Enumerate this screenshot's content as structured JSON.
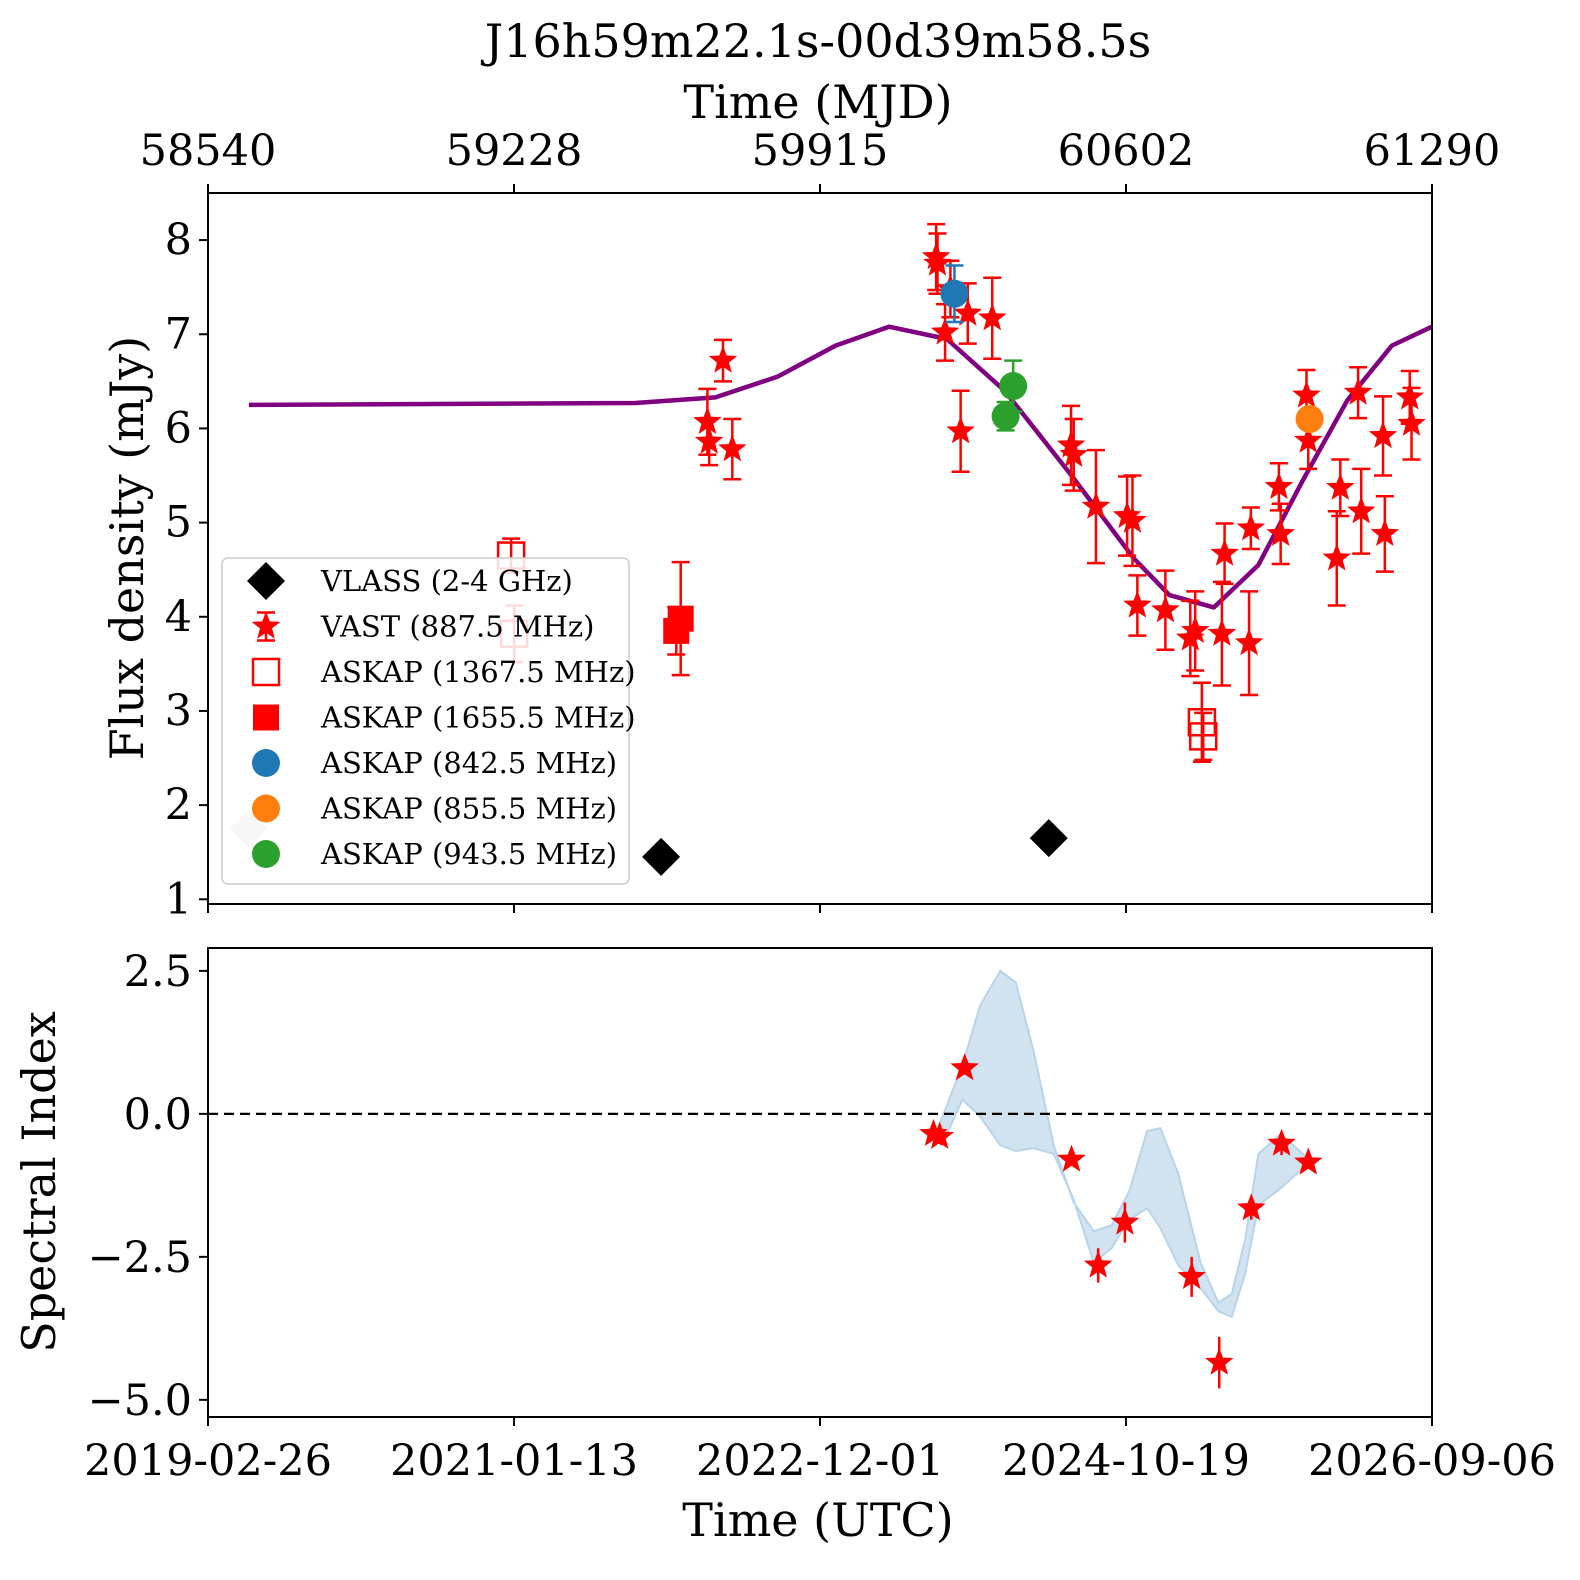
{
  "chart_data": [
    {
      "type": "scatter",
      "title": "J16h59m22.1s-00d39m58.5s",
      "xlabel_top": "Time (MJD)",
      "x_ticks_top": [
        "58540",
        "59228",
        "59915",
        "60602",
        "61290"
      ],
      "ylabel": "Flux density (mJy)",
      "ylim": [
        0.95,
        8.5
      ],
      "y_ticks": [
        "1",
        "2",
        "3",
        "4",
        "5",
        "6",
        "7",
        "8"
      ],
      "xlim_mjd": [
        58540,
        61290
      ],
      "grid": false,
      "legend_position": "lower-left",
      "series": [
        {
          "name": "VLASS (2-4 GHz)",
          "marker": "diamond",
          "color": "#000000",
          "filled": true,
          "points": [
            [
              59558,
              1.45,
              0.09
            ],
            [
              60429,
              1.65,
              0.09
            ]
          ]
        },
        {
          "name": "VAST (887.5 MHz)",
          "marker": "star",
          "color": "#ff0000",
          "filled": true,
          "points": [
            [
              59662,
              6.07,
              0.35
            ],
            [
              59666,
              5.86,
              0.25
            ],
            [
              59697,
              6.72,
              0.22
            ],
            [
              59718,
              5.78,
              0.32
            ],
            [
              60176,
              7.82,
              0.35
            ],
            [
              60179,
              7.75,
              0.32
            ],
            [
              60196,
              7.02,
              0.3
            ],
            [
              60208,
              7.48,
              0.3
            ],
            [
              60231,
              5.97,
              0.43
            ],
            [
              60247,
              7.22,
              0.32
            ],
            [
              60302,
              7.17,
              0.43
            ],
            [
              60479,
              5.82,
              0.42
            ],
            [
              60485,
              5.72,
              0.38
            ],
            [
              60535,
              5.17,
              0.6
            ],
            [
              60605,
              5.07,
              0.42
            ],
            [
              60617,
              5.02,
              0.48
            ],
            [
              60628,
              4.12,
              0.32
            ],
            [
              60691,
              4.07,
              0.42
            ],
            [
              60747,
              3.77,
              0.4
            ],
            [
              60758,
              3.85,
              0.42
            ],
            [
              60818,
              3.82,
              0.55
            ],
            [
              60824,
              4.67,
              0.32
            ],
            [
              60879,
              3.72,
              0.55
            ],
            [
              60883,
              4.94,
              0.22
            ],
            [
              60946,
              5.38,
              0.25
            ],
            [
              60950,
              4.88,
              0.32
            ],
            [
              61008,
              6.35,
              0.27
            ],
            [
              61012,
              5.87,
              0.3
            ],
            [
              61076,
              4.62,
              0.5
            ],
            [
              61084,
              5.37,
              0.3
            ],
            [
              61124,
              6.38,
              0.27
            ],
            [
              61131,
              5.12,
              0.45
            ],
            [
              61180,
              5.92,
              0.42
            ],
            [
              61184,
              4.88,
              0.4
            ],
            [
              61240,
              6.33,
              0.28
            ],
            [
              61244,
              6.05,
              0.38
            ]
          ]
        },
        {
          "name": "ASKAP (1367.5 MHz)",
          "marker": "square",
          "color": "#ff0000",
          "filled": false,
          "points": [
            [
              59221,
              4.65,
              0.18
            ],
            [
              59228,
              3.82,
              0.3
            ],
            [
              60773,
              2.88,
              0.42
            ],
            [
              60776,
              2.73,
              0.25
            ]
          ]
        },
        {
          "name": "ASKAP (1655.5 MHz)",
          "marker": "square",
          "color": "#ff0000",
          "filled": true,
          "points": [
            [
              59592,
              3.85,
              0.25
            ],
            [
              59602,
              3.98,
              0.6
            ]
          ]
        },
        {
          "name": "ASKAP (842.5 MHz)",
          "marker": "circle",
          "color": "#1f77b4",
          "filled": true,
          "points": [
            [
              60217,
              7.43,
              0.3
            ]
          ]
        },
        {
          "name": "ASKAP (855.5 MHz)",
          "marker": "circle",
          "color": "#ff7f0e",
          "filled": true,
          "points": [
            [
              61015,
              6.1,
              0.1
            ]
          ]
        },
        {
          "name": "ASKAP (943.5 MHz)",
          "marker": "circle",
          "color": "#2ca02c",
          "filled": true,
          "points": [
            [
              60332,
              6.13,
              0.15
            ],
            [
              60349,
              6.45,
              0.27
            ]
          ]
        },
        {
          "name": "",
          "marker": "diamond",
          "color": "#c8c8c8",
          "filled": true,
          "points": [
            [
              58632,
              1.75,
              0.05
            ]
          ]
        }
      ],
      "model_curve": {
        "color": "#800080",
        "baseline": 6.25,
        "start_mjd": 58632,
        "period_days": 1650,
        "peak_mjd": 60070,
        "points": [
          [
            58632,
            6.25
          ],
          [
            59500,
            6.27
          ],
          [
            59680,
            6.33
          ],
          [
            59820,
            6.55
          ],
          [
            59950,
            6.88
          ],
          [
            60070,
            7.08
          ],
          [
            60200,
            6.95
          ],
          [
            60330,
            6.4
          ],
          [
            60480,
            5.5
          ],
          [
            60620,
            4.62
          ],
          [
            60700,
            4.23
          ],
          [
            60800,
            4.1
          ],
          [
            60900,
            4.55
          ],
          [
            61000,
            5.45
          ],
          [
            61100,
            6.3
          ],
          [
            61200,
            6.88
          ],
          [
            61290,
            7.08
          ]
        ]
      }
    },
    {
      "type": "scatter",
      "xlabel": "Time (UTC)",
      "x_ticks": [
        "2019-02-26",
        "2021-01-13",
        "2022-12-01",
        "2024-10-19",
        "2026-09-06"
      ],
      "ylabel": "Spectral Index",
      "ylim": [
        -5.3,
        2.9
      ],
      "y_ticks": [
        "2.5",
        "0.0",
        "−2.5",
        "−5.0"
      ],
      "reference_line": {
        "y": 0.0,
        "style": "dashed",
        "color": "#000000"
      },
      "band_color": "#b8d4ea",
      "band": [
        [
          60178,
          -0.3,
          -0.3
        ],
        [
          60200,
          0.15,
          -0.35
        ],
        [
          60235,
          0.85,
          0.25
        ],
        [
          60275,
          1.9,
          -0.05
        ],
        [
          60320,
          2.5,
          -0.55
        ],
        [
          60355,
          2.3,
          -0.65
        ],
        [
          60395,
          1.1,
          -0.6
        ],
        [
          60440,
          -0.55,
          -0.7
        ],
        [
          60485,
          -1.55,
          -1.5
        ],
        [
          60530,
          -2.05,
          -2.6
        ],
        [
          60570,
          -1.95,
          -2.35
        ],
        [
          60610,
          -1.35,
          -1.85
        ],
        [
          60650,
          -0.3,
          -1.65
        ],
        [
          60680,
          -0.25,
          -2.0
        ],
        [
          60720,
          -1.05,
          -2.65
        ],
        [
          60770,
          -2.6,
          -3.05
        ],
        [
          60810,
          -3.3,
          -3.45
        ],
        [
          60840,
          -3.15,
          -3.55
        ],
        [
          60870,
          -2.2,
          -2.8
        ],
        [
          60900,
          -0.7,
          -1.6
        ],
        [
          60950,
          -0.35,
          -1.3
        ],
        [
          61000,
          -0.7,
          -0.95
        ],
        [
          61012,
          -0.8,
          -0.9
        ]
      ],
      "points": [
        [
          60170,
          -0.35,
          0.0
        ],
        [
          60184,
          -0.4,
          0.0
        ],
        [
          60240,
          0.8,
          0.0
        ],
        [
          60480,
          -0.8,
          0.0
        ],
        [
          60540,
          -2.65,
          0.3
        ],
        [
          60600,
          -1.9,
          0.35
        ],
        [
          60750,
          -2.85,
          0.35
        ],
        [
          60812,
          -4.35,
          0.45
        ],
        [
          60884,
          -1.65,
          0.2
        ],
        [
          60952,
          -0.52,
          0.2
        ],
        [
          61012,
          -0.85,
          0.0
        ]
      ]
    }
  ]
}
